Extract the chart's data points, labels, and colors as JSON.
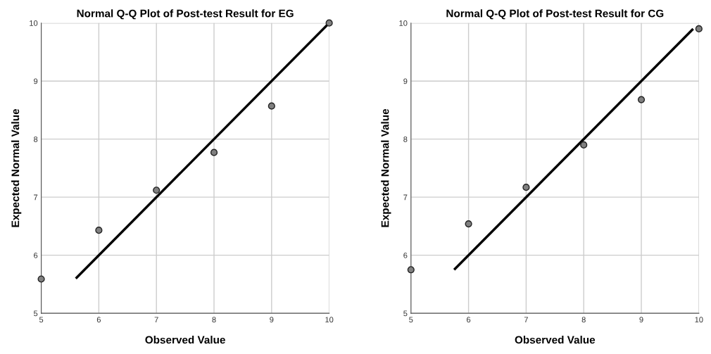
{
  "chart_data": [
    {
      "type": "scatter",
      "title": "Normal Q-Q Plot of Post-test Result for EG",
      "xlabel": "Observed Value",
      "ylabel": "Expected Normal Value",
      "xlim": [
        5,
        10
      ],
      "ylim": [
        5,
        10
      ],
      "xticks": [
        5,
        6,
        7,
        8,
        9,
        10
      ],
      "yticks": [
        5,
        6,
        7,
        8,
        9,
        10
      ],
      "grid": true,
      "series": [
        {
          "color": "#808080",
          "marker": "circle",
          "x": [
            5,
            6,
            7,
            8,
            9,
            10
          ],
          "values": [
            5.59,
            6.43,
            7.12,
            7.77,
            8.57,
            10.0
          ]
        },
        {
          "type": "line",
          "color": "#000000",
          "x": [
            5.6,
            10.0
          ],
          "values": [
            5.6,
            10.0
          ]
        }
      ]
    },
    {
      "type": "scatter",
      "title": "Normal Q-Q Plot of Post-test Result for CG",
      "xlabel": "Observed Value",
      "ylabel": "Expected Normal Value",
      "xlim": [
        5,
        10
      ],
      "ylim": [
        5,
        10
      ],
      "xticks": [
        5,
        6,
        7,
        8,
        9,
        10
      ],
      "yticks": [
        5,
        6,
        7,
        8,
        9,
        10
      ],
      "grid": true,
      "series": [
        {
          "color": "#808080",
          "marker": "circle",
          "x": [
            5,
            6,
            7,
            8,
            9,
            10
          ],
          "values": [
            5.75,
            6.54,
            7.17,
            7.9,
            8.68,
            9.9
          ]
        },
        {
          "type": "line",
          "color": "#000000",
          "x": [
            5.75,
            9.9
          ],
          "values": [
            5.75,
            9.9
          ]
        }
      ]
    }
  ]
}
